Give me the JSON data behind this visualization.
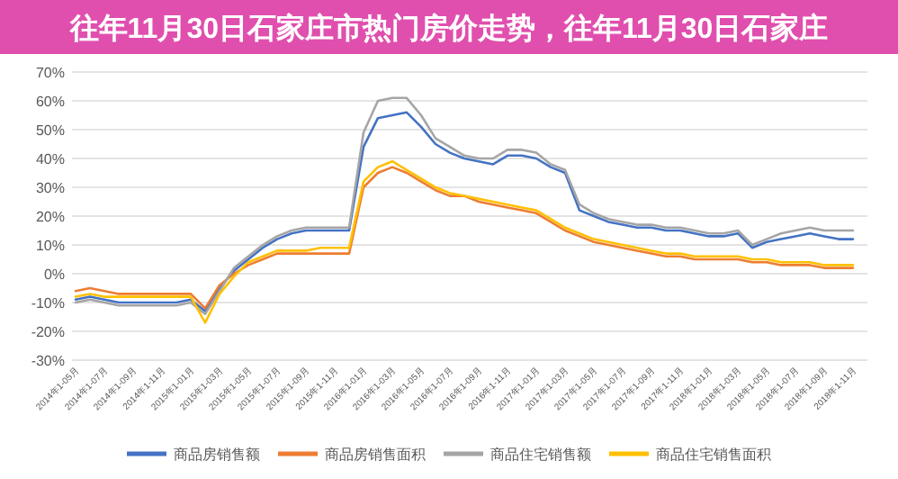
{
  "chart_data": {
    "type": "line",
    "title": "往年11月30日石家庄市热门房价走势，往年11月30日石家庄",
    "categories": [
      "2014年1-05月",
      null,
      "2014年1-07月",
      null,
      "2014年1-09月",
      null,
      "2014年1-11月",
      null,
      "2015年1-01月",
      null,
      "2015年1-03月",
      null,
      "2015年1-05月",
      null,
      "2015年1-07月",
      null,
      "2015年1-09月",
      null,
      "2015年1-11月",
      null,
      "2016年1-01月",
      null,
      "2016年1-03月",
      null,
      "2016年1-05月",
      null,
      "2016年1-07月",
      null,
      "2016年1-09月",
      null,
      "2016年1-11月",
      null,
      "2017年1-01月",
      null,
      "2017年1-03月",
      null,
      "2017年1-05月",
      null,
      "2017年1-07月",
      null,
      "2017年1-09月",
      null,
      "2017年1-11月",
      null,
      "2018年1-01月",
      null,
      "2018年1-03月",
      null,
      "2018年1-05月",
      null,
      "2018年1-07月",
      null,
      "2018年1-09月",
      null,
      "2018年1-11月"
    ],
    "series": [
      {
        "name": "商品房销售额",
        "color": "#4472c4",
        "values": [
          -9,
          -8,
          -9,
          -10,
          -10,
          -10,
          -10,
          -10,
          -9,
          -13,
          -5,
          1,
          5,
          9,
          12,
          14,
          15,
          15,
          15,
          15,
          44,
          54,
          55,
          56,
          51,
          45,
          42,
          40,
          39,
          38,
          41,
          41,
          40,
          37,
          35,
          22,
          20,
          18,
          17,
          16,
          16,
          15,
          15,
          14,
          13,
          13,
          14,
          9,
          11,
          12,
          13,
          14,
          13,
          12,
          12
        ]
      },
      {
        "name": "商品房销售面积",
        "color": "#ed7d31",
        "values": [
          -6,
          -5,
          -6,
          -7,
          -7,
          -7,
          -7,
          -7,
          -7,
          -12,
          -4,
          0,
          3,
          5,
          7,
          7,
          7,
          7,
          7,
          7,
          30,
          35,
          37,
          35,
          32,
          29,
          27,
          27,
          25,
          24,
          23,
          22,
          21,
          18,
          15,
          13,
          11,
          10,
          9,
          8,
          7,
          6,
          6,
          5,
          5,
          5,
          5,
          4,
          4,
          3,
          3,
          3,
          2,
          2,
          2
        ]
      },
      {
        "name": "商品住宅销售额",
        "color": "#a5a5a5",
        "values": [
          -10,
          -9,
          -10,
          -11,
          -11,
          -11,
          -11,
          -11,
          -10,
          -14,
          -6,
          2,
          6,
          10,
          13,
          15,
          16,
          16,
          16,
          16,
          49,
          60,
          61,
          61,
          55,
          47,
          44,
          41,
          40,
          40,
          43,
          43,
          42,
          38,
          36,
          24,
          21,
          19,
          18,
          17,
          17,
          16,
          16,
          15,
          14,
          14,
          15,
          10,
          12,
          14,
          15,
          16,
          15,
          15,
          15
        ]
      },
      {
        "name": "商品住宅销售面积",
        "color": "#ffc000",
        "values": [
          -8,
          -7,
          -8,
          -8,
          -8,
          -8,
          -8,
          -8,
          -8,
          -17,
          -7,
          -1,
          4,
          6,
          8,
          8,
          8,
          9,
          9,
          9,
          32,
          37,
          39,
          36,
          33,
          30,
          28,
          27,
          26,
          25,
          24,
          23,
          22,
          19,
          16,
          14,
          12,
          11,
          10,
          9,
          8,
          7,
          7,
          6,
          6,
          6,
          6,
          5,
          5,
          4,
          4,
          4,
          3,
          3,
          3
        ]
      }
    ],
    "ylim": [
      -30,
      70
    ],
    "yticks": [
      {
        "value": -30,
        "label": "-30%"
      },
      {
        "value": -20,
        "label": "-20%"
      },
      {
        "value": -10,
        "label": "-10%"
      },
      {
        "value": 0,
        "label": "0%"
      },
      {
        "value": 10,
        "label": "10%"
      },
      {
        "value": 20,
        "label": "20%"
      },
      {
        "value": 30,
        "label": "30%"
      },
      {
        "value": 40,
        "label": "40%"
      },
      {
        "value": 50,
        "label": "50%"
      },
      {
        "value": 60,
        "label": "60%"
      },
      {
        "value": 70,
        "label": "70%"
      }
    ],
    "grid": "y",
    "legend": "bottom",
    "marker": "none",
    "line_style": "solid"
  }
}
